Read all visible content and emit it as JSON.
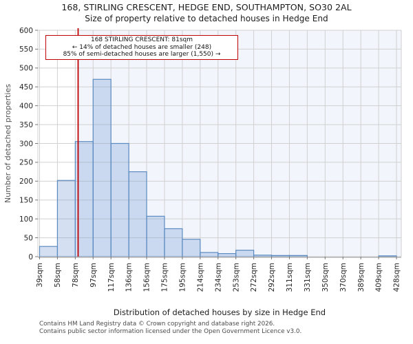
{
  "chart_data": {
    "type": "bar",
    "title": "168, STIRLING CRESCENT, HEDGE END, SOUTHAMPTON, SO30 2AL",
    "subtitle": "Size of property relative to detached houses in Hedge End",
    "xlabel": "Distribution of detached houses by size in Hedge End",
    "ylabel": "Number of detached properties",
    "bin_edge_labels": [
      "39sqm",
      "58sqm",
      "78sqm",
      "97sqm",
      "117sqm",
      "136sqm",
      "156sqm",
      "175sqm",
      "195sqm",
      "214sqm",
      "234sqm",
      "253sqm",
      "272sqm",
      "292sqm",
      "311sqm",
      "331sqm",
      "350sqm",
      "370sqm",
      "389sqm",
      "409sqm",
      "428sqm"
    ],
    "bin_edges_sqm": [
      39,
      58,
      78,
      97,
      117,
      136,
      156,
      175,
      195,
      214,
      234,
      253,
      272,
      292,
      311,
      331,
      350,
      370,
      389,
      409,
      428
    ],
    "values": [
      27,
      202,
      305,
      470,
      300,
      225,
      107,
      74,
      46,
      11,
      8,
      17,
      4,
      3,
      3,
      0,
      0,
      0,
      0,
      2
    ],
    "ylim": [
      0,
      600
    ],
    "ytick_step": 50,
    "x_range_sqm": [
      39,
      428
    ],
    "marker_sqm": 81,
    "grid": true,
    "legend_position": "none",
    "colors": {
      "bar_fill_rgba": "rgba(112,152,212,0.30)",
      "bar_edge": "#5b8ac0",
      "marker_line": "#c00000",
      "annotation_border": "#c00000",
      "shade_right_of_marker": "#f2f5fc",
      "gridline": "#d0d0d0",
      "axis_line": "#bdbdbd",
      "tick_label": "#262626",
      "axis_title": "#333333"
    }
  },
  "annotation": {
    "line1": "168 STIRLING CRESCENT: 81sqm",
    "line2": "← 14% of detached houses are smaller (248)",
    "line3": "85% of semi-detached houses are larger (1,550) →"
  },
  "footer": {
    "line1": "Contains HM Land Registry data © Crown copyright and database right 2026.",
    "line2": "Contains public sector information licensed under the Open Government Licence v3.0."
  }
}
